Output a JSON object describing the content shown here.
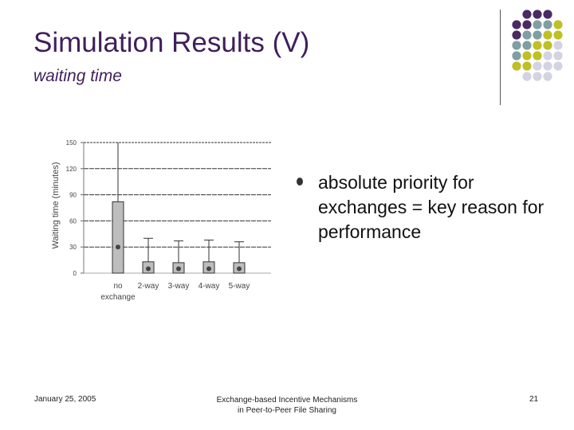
{
  "slide": {
    "title": "Simulation Results (V)",
    "subtitle": "waiting time",
    "bullet": "absolute priority for exchanges = key reason for performance",
    "footer_left": "January 25, 2005",
    "footer_center_line1": "Exchange-based Incentive Mechanisms",
    "footer_center_line2": "in Peer-to-Peer File Sharing",
    "page_number": "21"
  },
  "colors": {
    "title": "#3f1f5a",
    "purple": "#4a2a63",
    "teal": "#7e9fa3",
    "olive": "#bfbf26",
    "lavender": "#d3d3e3"
  },
  "chart_data": {
    "type": "box",
    "xlabel": "",
    "ylabel": "Waiting time (minutes)",
    "ylim": [
      0,
      150
    ],
    "yticks": [
      0,
      30,
      60,
      90,
      120,
      150
    ],
    "grid": true,
    "categories": [
      {
        "line1": "no",
        "line2": "exchange"
      },
      {
        "line1": "2-way",
        "line2": ""
      },
      {
        "line1": "3-way",
        "line2": ""
      },
      {
        "line1": "4-way",
        "line2": ""
      },
      {
        "line1": "5-way",
        "line2": ""
      }
    ],
    "boxes": [
      {
        "q1": 0,
        "q3": 82,
        "whisker_high": 150,
        "mean": 30
      },
      {
        "q1": 0,
        "q3": 13,
        "whisker_high": 40,
        "mean": 5
      },
      {
        "q1": 0,
        "q3": 12,
        "whisker_high": 37,
        "mean": 5
      },
      {
        "q1": 0,
        "q3": 13,
        "whisker_high": 38,
        "mean": 5
      },
      {
        "q1": 0,
        "q3": 12,
        "whisker_high": 36,
        "mean": 5
      }
    ]
  }
}
